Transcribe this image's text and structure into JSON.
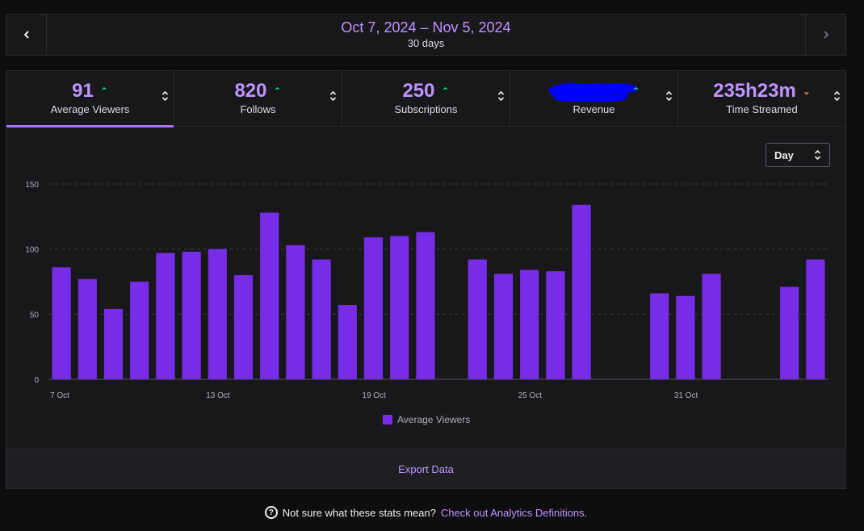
{
  "date_nav": {
    "range": "Oct 7, 2024 – Nov 5, 2024",
    "duration": "30 days",
    "prev_icon": "chevron-left-icon",
    "next_icon": "chevron-right-icon"
  },
  "metrics": [
    {
      "value": "91",
      "label": "Average Viewers",
      "trend": "up",
      "active": true
    },
    {
      "value": "820",
      "label": "Follows",
      "trend": "up",
      "active": false
    },
    {
      "value": "250",
      "label": "Subscriptions",
      "trend": "up",
      "active": false
    },
    {
      "value": "",
      "label": "Revenue",
      "trend": "up",
      "active": false,
      "redacted": true
    },
    {
      "value": "235h23m",
      "label": "Time Streamed",
      "trend": "down",
      "active": false
    }
  ],
  "trend_symbols": {
    "up": "⌃",
    "down": "⌄"
  },
  "colors": {
    "accent": "#bf94ff",
    "bar": "#772ce8",
    "up": "#00f593",
    "down": "#ffb31a",
    "redaction": "#0000ff"
  },
  "granularity": {
    "selected": "Day"
  },
  "chart_data": {
    "type": "bar",
    "title": "",
    "xlabel": "",
    "ylabel": "",
    "ylim": [
      0,
      150
    ],
    "yticks": [
      "0",
      "50",
      "100",
      "150"
    ],
    "xtick_labels": [
      {
        "index": 0,
        "label": "7 Oct"
      },
      {
        "index": 6,
        "label": "13 Oct"
      },
      {
        "index": 12,
        "label": "19 Oct"
      },
      {
        "index": 18,
        "label": "25 Oct"
      },
      {
        "index": 24,
        "label": "31 Oct"
      }
    ],
    "categories": [
      "Oct 7",
      "Oct 8",
      "Oct 9",
      "Oct 10",
      "Oct 11",
      "Oct 12",
      "Oct 13",
      "Oct 14",
      "Oct 15",
      "Oct 16",
      "Oct 17",
      "Oct 18",
      "Oct 19",
      "Oct 20",
      "Oct 21",
      "Oct 22",
      "Oct 23",
      "Oct 24",
      "Oct 25",
      "Oct 26",
      "Oct 27",
      "Oct 28",
      "Oct 29",
      "Oct 30",
      "Oct 31",
      "Nov 1",
      "Nov 2",
      "Nov 3",
      "Nov 4",
      "Nov 5"
    ],
    "series": [
      {
        "name": "Average Viewers",
        "values": [
          86,
          77,
          54,
          75,
          97,
          98,
          100,
          80,
          128,
          103,
          92,
          57,
          109,
          110,
          113,
          0,
          92,
          81,
          84,
          83,
          134,
          0,
          0,
          66,
          64,
          81,
          0,
          0,
          71,
          92
        ]
      }
    ],
    "legend": "bottom-center"
  },
  "footer": {
    "export_label": "Export Data",
    "help_text": "Not sure what these stats mean?",
    "help_link": "Check out Analytics Definitions."
  }
}
